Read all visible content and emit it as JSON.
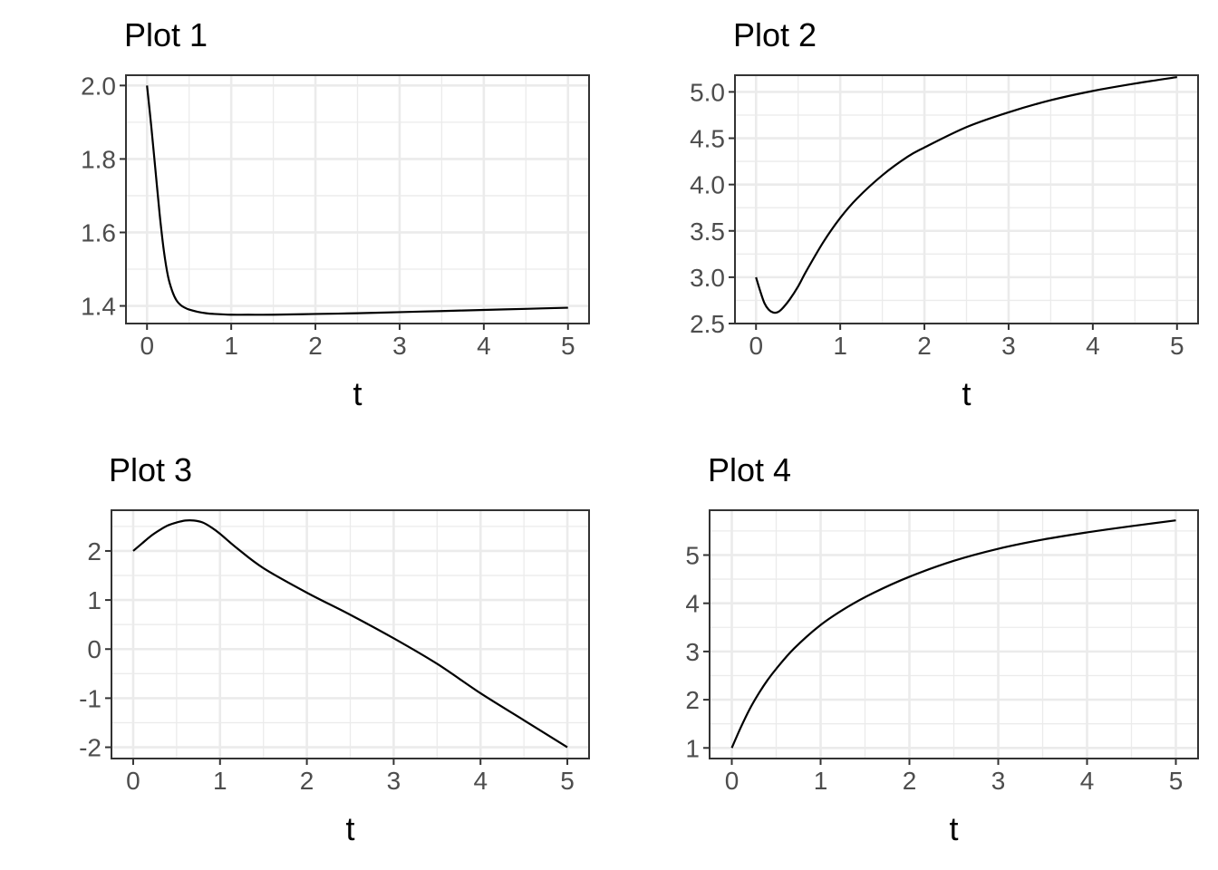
{
  "chart_data": [
    {
      "type": "line",
      "title": "Plot 1",
      "xlabel": "t",
      "ylabel": "",
      "xlim": [
        -0.25,
        5.25
      ],
      "ylim": [
        1.352,
        2.028
      ],
      "x_ticks": [
        0,
        1,
        2,
        3,
        4,
        5
      ],
      "x_tick_labels": [
        "0",
        "1",
        "2",
        "3",
        "4",
        "5"
      ],
      "y_ticks": [
        1.4,
        1.6,
        1.8,
        2.0
      ],
      "y_tick_labels": [
        "1.4",
        "1.6",
        "1.8",
        "2.0"
      ],
      "grid": true,
      "series": [
        {
          "x": [
            0,
            0.05,
            0.1,
            0.15,
            0.2,
            0.25,
            0.3,
            0.35,
            0.4,
            0.45,
            0.5,
            0.6,
            0.7,
            0.8,
            1.0,
            1.2,
            1.5,
            2.0,
            2.5,
            3.0,
            3.5,
            4.0,
            4.5,
            5.0
          ],
          "y": [
            2.0,
            1.89,
            1.77,
            1.65,
            1.55,
            1.48,
            1.44,
            1.415,
            1.402,
            1.395,
            1.39,
            1.384,
            1.38,
            1.378,
            1.376,
            1.376,
            1.376,
            1.378,
            1.38,
            1.383,
            1.386,
            1.389,
            1.392,
            1.395
          ],
          "color": "#000000"
        }
      ]
    },
    {
      "type": "line",
      "title": "Plot 2",
      "xlabel": "t",
      "ylabel": "",
      "xlim": [
        -0.25,
        5.25
      ],
      "ylim": [
        2.5,
        5.18
      ],
      "x_ticks": [
        0,
        1,
        2,
        3,
        4,
        5
      ],
      "x_tick_labels": [
        "0",
        "1",
        "2",
        "3",
        "4",
        "5"
      ],
      "y_ticks": [
        2.5,
        3.0,
        3.5,
        4.0,
        4.5,
        5.0
      ],
      "y_tick_labels": [
        "2.5",
        "3.0",
        "3.5",
        "4.0",
        "4.5",
        "5.0"
      ],
      "grid": true,
      "series": [
        {
          "x": [
            0,
            0.05,
            0.1,
            0.15,
            0.2,
            0.25,
            0.3,
            0.4,
            0.5,
            0.6,
            0.8,
            1.0,
            1.2,
            1.5,
            1.8,
            2.0,
            2.5,
            3.0,
            3.5,
            4.0,
            4.5,
            5.0
          ],
          "y": [
            3.0,
            2.85,
            2.72,
            2.65,
            2.62,
            2.62,
            2.65,
            2.76,
            2.9,
            3.07,
            3.38,
            3.64,
            3.85,
            4.1,
            4.3,
            4.4,
            4.62,
            4.78,
            4.91,
            5.01,
            5.09,
            5.16
          ],
          "color": "#000000"
        }
      ]
    },
    {
      "type": "line",
      "title": "Plot 3",
      "xlabel": "t",
      "ylabel": "",
      "xlim": [
        -0.25,
        5.25
      ],
      "ylim": [
        -2.23,
        2.83
      ],
      "x_ticks": [
        0,
        1,
        2,
        3,
        4,
        5
      ],
      "x_tick_labels": [
        "0",
        "1",
        "2",
        "3",
        "4",
        "5"
      ],
      "y_ticks": [
        -2,
        -1,
        0,
        1,
        2
      ],
      "y_tick_labels": [
        "-2",
        "-1",
        "0",
        "1",
        "2"
      ],
      "grid": true,
      "series": [
        {
          "x": [
            0,
            0.1,
            0.2,
            0.3,
            0.4,
            0.5,
            0.6,
            0.7,
            0.8,
            0.9,
            1.0,
            1.2,
            1.5,
            2.0,
            2.5,
            3.0,
            3.5,
            4.0,
            4.5,
            5.0
          ],
          "y": [
            2.0,
            2.15,
            2.3,
            2.42,
            2.52,
            2.58,
            2.62,
            2.62,
            2.58,
            2.48,
            2.35,
            2.05,
            1.65,
            1.15,
            0.7,
            0.22,
            -0.3,
            -0.9,
            -1.45,
            -2.0
          ],
          "color": "#000000"
        }
      ]
    },
    {
      "type": "line",
      "title": "Plot 4",
      "xlabel": "t",
      "ylabel": "",
      "xlim": [
        -0.25,
        5.25
      ],
      "ylim": [
        0.78,
        5.93
      ],
      "x_ticks": [
        0,
        1,
        2,
        3,
        4,
        5
      ],
      "x_tick_labels": [
        "0",
        "1",
        "2",
        "3",
        "4",
        "5"
      ],
      "y_ticks": [
        1,
        2,
        3,
        4,
        5
      ],
      "y_tick_labels": [
        "1",
        "2",
        "3",
        "4",
        "5"
      ],
      "grid": true,
      "series": [
        {
          "x": [
            0,
            0.1,
            0.2,
            0.3,
            0.4,
            0.5,
            0.7,
            1.0,
            1.3,
            1.6,
            2.0,
            2.5,
            3.0,
            3.5,
            4.0,
            4.5,
            5.0
          ],
          "y": [
            1.0,
            1.42,
            1.8,
            2.12,
            2.4,
            2.64,
            3.06,
            3.55,
            3.92,
            4.22,
            4.55,
            4.88,
            5.13,
            5.32,
            5.47,
            5.6,
            5.72
          ],
          "color": "#000000"
        }
      ]
    }
  ]
}
